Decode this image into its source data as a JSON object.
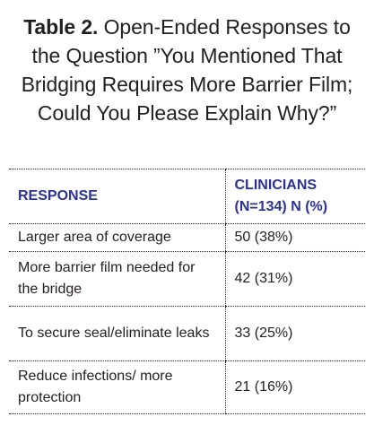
{
  "table": {
    "title_label": "Table 2.",
    "title_text": "Open-Ended Responses to the Question ”You Mentioned That Bridging Requires More Barrier Film; Could You Please Explain Why?”",
    "headers": [
      "RESPONSE",
      "CLINICIANS (N=134) N (%)"
    ],
    "rows": [
      {
        "response": "Larger area of coverage",
        "value": "50 (38%)"
      },
      {
        "response": "More barrier film needed for the bridge",
        "value": "42 (31%)"
      },
      {
        "response": "To secure seal/eliminate leaks",
        "value": "33 (25%)"
      },
      {
        "response": "Reduce infections/ more protection",
        "value": "21 (16%)"
      }
    ]
  },
  "colors": {
    "header_text": "#2e3192",
    "body_text": "#231f20",
    "rule": "#231f20"
  }
}
